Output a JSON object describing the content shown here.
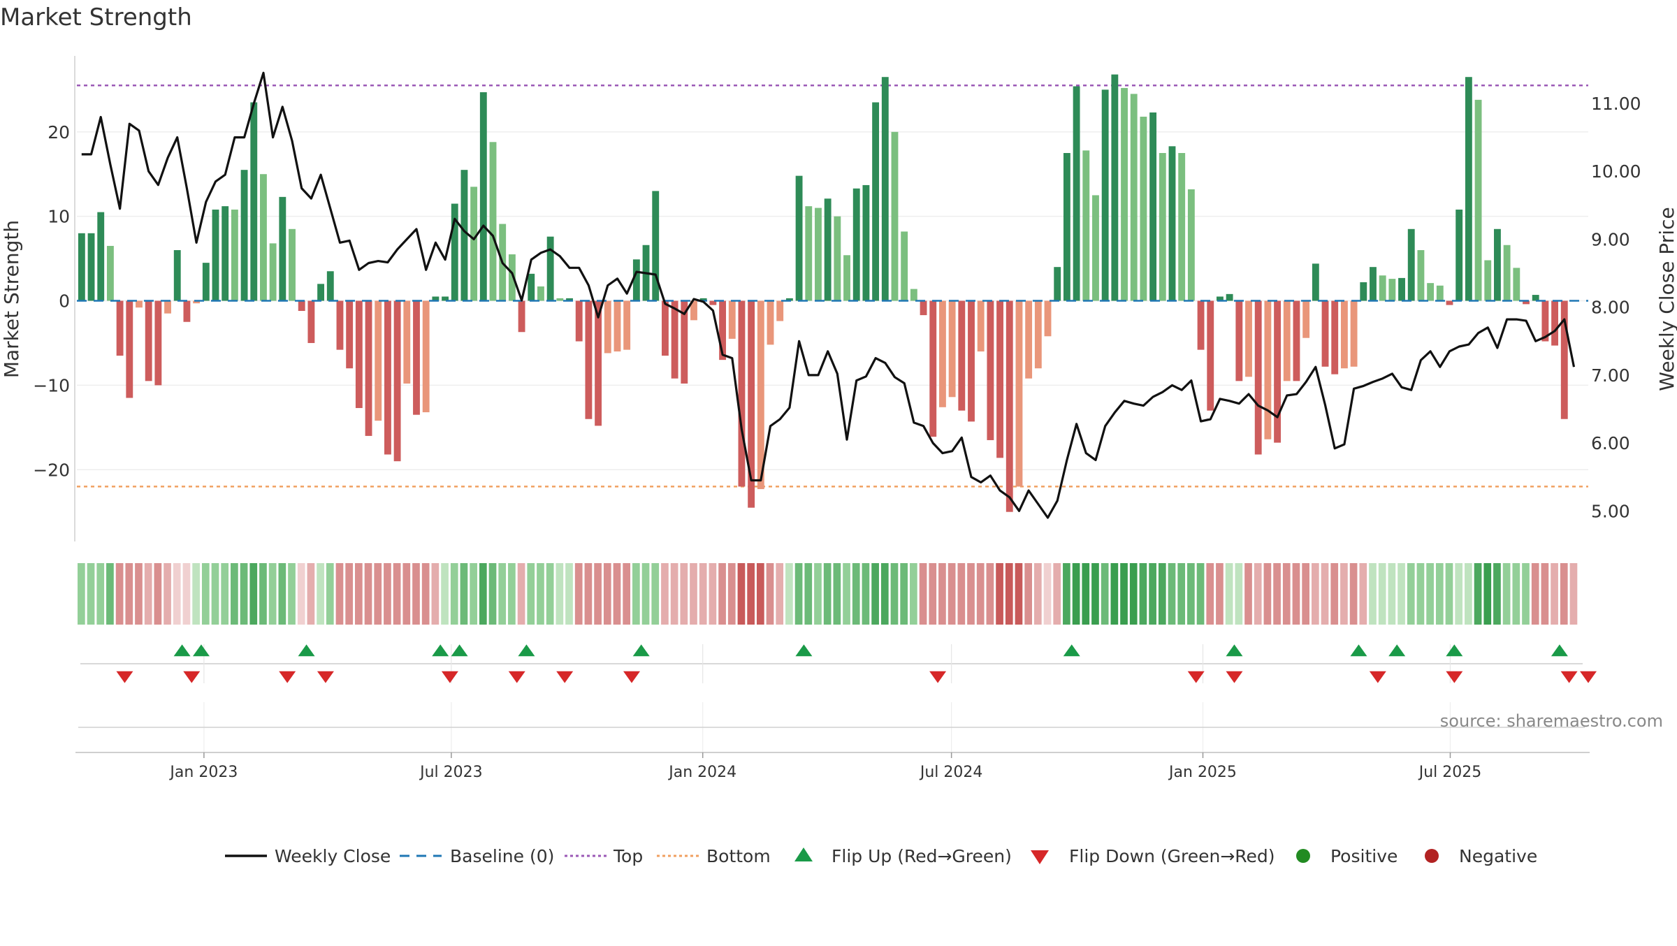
{
  "title": "Market Strength",
  "source": "source: sharemaestro.com",
  "colors": {
    "strong_green": "#2e8b57",
    "light_green": "#7bbf7f",
    "strong_red": "#cd5c5c",
    "light_red": "#e9967a",
    "price_line": "#111111",
    "baseline": "#1f77b4",
    "top": "#9b59b6",
    "bottom": "#f0a060",
    "flip_up": "#1a9a48",
    "flip_down": "#d62728",
    "positive": "#228b22",
    "negative": "#b22222"
  },
  "chart_data": {
    "type": "bar",
    "title": "Market Strength",
    "ylabel_left": "Market Strength",
    "ylabel_right": "Weekly Close Price",
    "ylim_left": [
      -28.5,
      29
    ],
    "ylim_right": [
      4.55,
      11.7
    ],
    "yticks_left": [
      20,
      10,
      0,
      -10,
      -20
    ],
    "yticks_left_labels": [
      "20",
      "10",
      "0",
      "−10",
      "−20"
    ],
    "yticks_right": [
      11.0,
      10.0,
      9.0,
      8.0,
      7.0,
      6.0,
      5.0
    ],
    "yticks_right_labels": [
      "11.00",
      "10.00",
      "9.00",
      "8.00",
      "7.00",
      "6.00",
      "5.00"
    ],
    "top_level": 25.5,
    "bottom_level": -22.0,
    "x_start": "2022-09-30",
    "x_end": "2025-10-10",
    "xtick_dates": [
      "2023-01-01",
      "2023-07-01",
      "2024-01-01",
      "2024-07-01",
      "2025-01-01",
      "2025-07-01"
    ],
    "xtick_labels": [
      "Jan 2023",
      "Jul 2023",
      "Jan 2024",
      "Jul 2024",
      "Jan 2025",
      "Jul 2025"
    ],
    "strength": [
      8,
      8,
      10.5,
      6.5,
      -6.5,
      -11.5,
      -0.8,
      -9.5,
      -10,
      -1.5,
      6,
      -2.5,
      -0.3,
      4.5,
      10.8,
      11.2,
      10.8,
      15.5,
      23.5,
      15,
      6.8,
      12.3,
      8.5,
      -1.2,
      -5,
      2,
      3.5,
      -5.8,
      -8,
      -12.7,
      -16,
      -14.2,
      -18.2,
      -19,
      -9.8,
      -13.5,
      -13.2,
      0.5,
      0.5,
      11.5,
      15.5,
      13.5,
      24.7,
      18.8,
      9.1,
      5.5,
      -3.7,
      3.2,
      1.7,
      7.6,
      0.3,
      0.3,
      -4.8,
      -14,
      -14.8,
      -6.2,
      -6,
      -5.8,
      4.9,
      6.6,
      13,
      -6.5,
      -9.2,
      -9.8,
      -2.3,
      0.3,
      -0.5,
      -7,
      -4.5,
      -22,
      -24.5,
      -22.3,
      -5.2,
      -2.4,
      0.3,
      14.8,
      11.2,
      11,
      12.1,
      10,
      5.4,
      13.3,
      13.7,
      23.5,
      26.5,
      20,
      8.2,
      1.4,
      -1.7,
      -16.1,
      -12.6,
      -11.4,
      -13,
      -14.3,
      -6,
      -16.5,
      -18.6,
      -25,
      -22,
      -9.2,
      -8,
      -4.2,
      4,
      17.5,
      25.4,
      17.8,
      12.5,
      25,
      26.8,
      25.2,
      24.5,
      21.8,
      22.3,
      17.5,
      18.3,
      17.5,
      13.2,
      -5.8,
      -13,
      0.5,
      0.8,
      -9.5,
      -9,
      -18.2,
      -16.4,
      -16.8,
      -9.5,
      -9.5,
      -4.4,
      4.4,
      -7.8,
      -8.7,
      -8,
      -7.8,
      2.2,
      4,
      3,
      2.6,
      2.7,
      8.5,
      6,
      2.1,
      1.8,
      -0.5,
      10.8,
      26.5,
      23.8,
      4.8,
      8.5,
      6.6,
      3.9,
      -0.4,
      0.7,
      -4.8,
      -5.3,
      -14
    ],
    "price": [
      10.25,
      10.25,
      10.8,
      10.1,
      9.45,
      10.7,
      10.6,
      10.0,
      9.8,
      10.2,
      10.5,
      9.75,
      8.95,
      9.55,
      9.85,
      9.95,
      10.5,
      10.5,
      11.0,
      11.45,
      10.5,
      10.95,
      10.45,
      9.75,
      9.6,
      9.95,
      9.45,
      8.95,
      8.98,
      8.55,
      8.65,
      8.68,
      8.66,
      8.85,
      9.0,
      9.15,
      8.55,
      8.95,
      8.7,
      9.3,
      9.12,
      9.0,
      9.2,
      9.05,
      8.65,
      8.5,
      8.1,
      8.7,
      8.8,
      8.85,
      8.75,
      8.58,
      8.58,
      8.32,
      7.85,
      8.32,
      8.42,
      8.2,
      8.52,
      8.5,
      8.48,
      8.05,
      7.98,
      7.9,
      8.12,
      8.08,
      7.95,
      7.3,
      7.25,
      6.2,
      5.45,
      5.45,
      6.25,
      6.35,
      6.52,
      7.5,
      7.0,
      7.0,
      7.35,
      7.02,
      6.05,
      6.92,
      6.98,
      7.25,
      7.18,
      6.97,
      6.88,
      6.3,
      6.25,
      6.0,
      5.85,
      5.88,
      6.08,
      5.5,
      5.42,
      5.52,
      5.3,
      5.2,
      5.0,
      5.3,
      5.1,
      4.9,
      5.15,
      5.75,
      6.28,
      5.85,
      5.75,
      6.25,
      6.45,
      6.62,
      6.58,
      6.55,
      6.68,
      6.75,
      6.85,
      6.78,
      6.92,
      6.32,
      6.35,
      6.65,
      6.62,
      6.58,
      6.72,
      6.55,
      6.48,
      6.38,
      6.7,
      6.72,
      6.9,
      7.12,
      6.56,
      5.92,
      5.98,
      6.8,
      6.84,
      6.9,
      6.95,
      7.02,
      6.82,
      6.78,
      7.22,
      7.35,
      7.12,
      7.35,
      7.42,
      7.45,
      7.62,
      7.7,
      7.4,
      7.82,
      7.82,
      7.8,
      7.5,
      7.56,
      7.65,
      7.82,
      7.12
    ],
    "mood": [
      3,
      3,
      3,
      2,
      5,
      5,
      5,
      6,
      5,
      6,
      7,
      7,
      4,
      3,
      3,
      3,
      2,
      2,
      1,
      2,
      3,
      2,
      3,
      7,
      6,
      4,
      3,
      5,
      5,
      5,
      5,
      5,
      5,
      5,
      5,
      5,
      5,
      6,
      4,
      3,
      2,
      3,
      1,
      2,
      3,
      3,
      6,
      3,
      3,
      3,
      4,
      4,
      5,
      5,
      5,
      5,
      5,
      5,
      3,
      3,
      3,
      6,
      6,
      6,
      6,
      6,
      6,
      5,
      5,
      9,
      9,
      9,
      5,
      6,
      4,
      2,
      2,
      3,
      2,
      2,
      3,
      2,
      2,
      1,
      1,
      2,
      2,
      3,
      5,
      5,
      5,
      5,
      5,
      5,
      5,
      5,
      9,
      9,
      9,
      5,
      6,
      7,
      6,
      1,
      0,
      0,
      0,
      2,
      0,
      0,
      0,
      1,
      1,
      1,
      2,
      2,
      2,
      2,
      5,
      5,
      4,
      4,
      5,
      6,
      5,
      5,
      5,
      5,
      5,
      6,
      6,
      5,
      6,
      5,
      6,
      4,
      4,
      4,
      4,
      3,
      3,
      3,
      3,
      3,
      4,
      4,
      1,
      0,
      1,
      3,
      3,
      3,
      5,
      5,
      6,
      5,
      6
    ],
    "flip_up": [
      "2022-12-16",
      "2022-12-30",
      "2023-03-17",
      "2023-06-23",
      "2023-07-07",
      "2023-08-25",
      "2023-11-17",
      "2024-03-15",
      "2024-09-27",
      "2025-01-24",
      "2025-04-25",
      "2025-05-23",
      "2025-07-04",
      "2025-09-19"
    ],
    "flip_down": [
      "2022-11-04",
      "2022-12-23",
      "2023-03-03",
      "2023-03-31",
      "2023-06-30",
      "2023-08-18",
      "2023-09-22",
      "2023-11-10",
      "2024-06-21",
      "2024-12-27",
      "2025-01-24",
      "2025-05-09",
      "2025-07-04",
      "2025-09-26",
      "2025-10-10"
    ],
    "series": [
      {
        "name": "Weekly Close",
        "type": "line",
        "axis": "right"
      },
      {
        "name": "Market Strength",
        "type": "bar",
        "axis": "left"
      }
    ]
  },
  "legend": [
    {
      "label": "Weekly Close",
      "kind": "line"
    },
    {
      "label": "Baseline (0)",
      "kind": "dash"
    },
    {
      "label": "Top",
      "kind": "dot-purple"
    },
    {
      "label": "Bottom",
      "kind": "dot-orange"
    },
    {
      "label": "Flip Up (Red→Green)",
      "kind": "tri-up"
    },
    {
      "label": "Flip Down (Green→Red)",
      "kind": "tri-down"
    },
    {
      "label": "Positive",
      "kind": "circle-green"
    },
    {
      "label": "Negative",
      "kind": "circle-red"
    }
  ]
}
